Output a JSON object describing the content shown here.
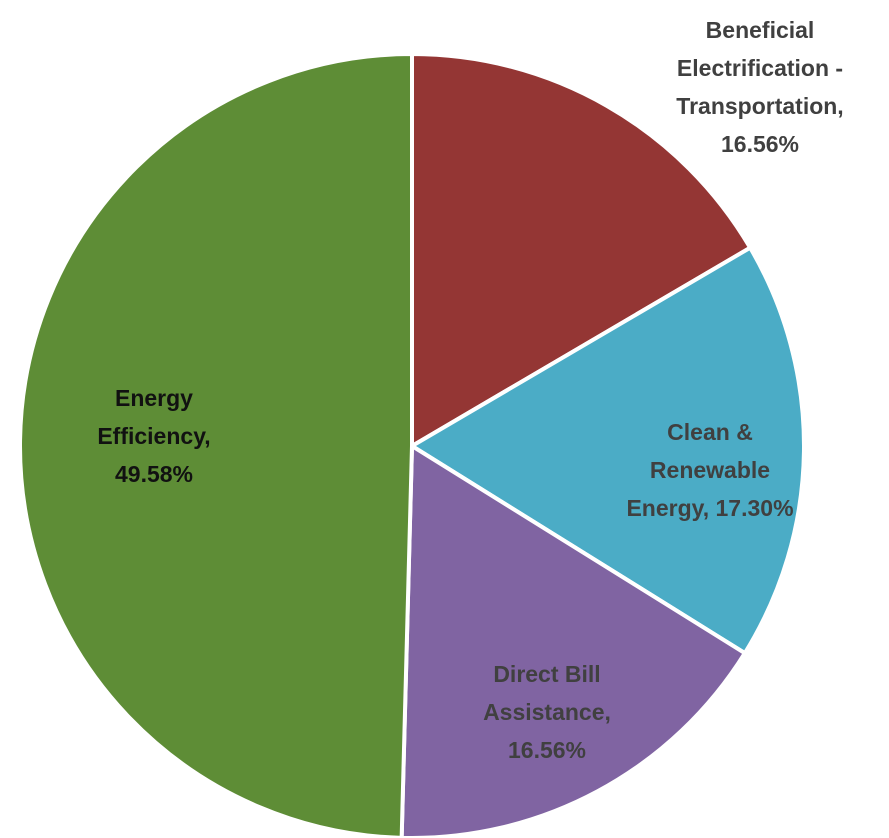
{
  "chart_data": {
    "type": "pie",
    "title": "",
    "slices": [
      {
        "label": "Beneficial Electrification - Transportation",
        "value": 16.56,
        "value_label": "16.56%",
        "color": "#943634",
        "label_color": "#404040"
      },
      {
        "label": "Clean & Renewable Energy",
        "value": 17.3,
        "value_label": "17.30%",
        "color": "#4BACC6",
        "label_color": "#404040"
      },
      {
        "label": "Direct Bill Assistance",
        "value": 16.56,
        "value_label": "16.56%",
        "color": "#8064A2",
        "label_color": "#404040"
      },
      {
        "label": "Energy Efficiency",
        "value": 49.58,
        "value_label": "49.58%",
        "color": "#5E8D36",
        "label_color": "#111111"
      }
    ],
    "legend": "none",
    "separator_color": "#ffffff"
  }
}
